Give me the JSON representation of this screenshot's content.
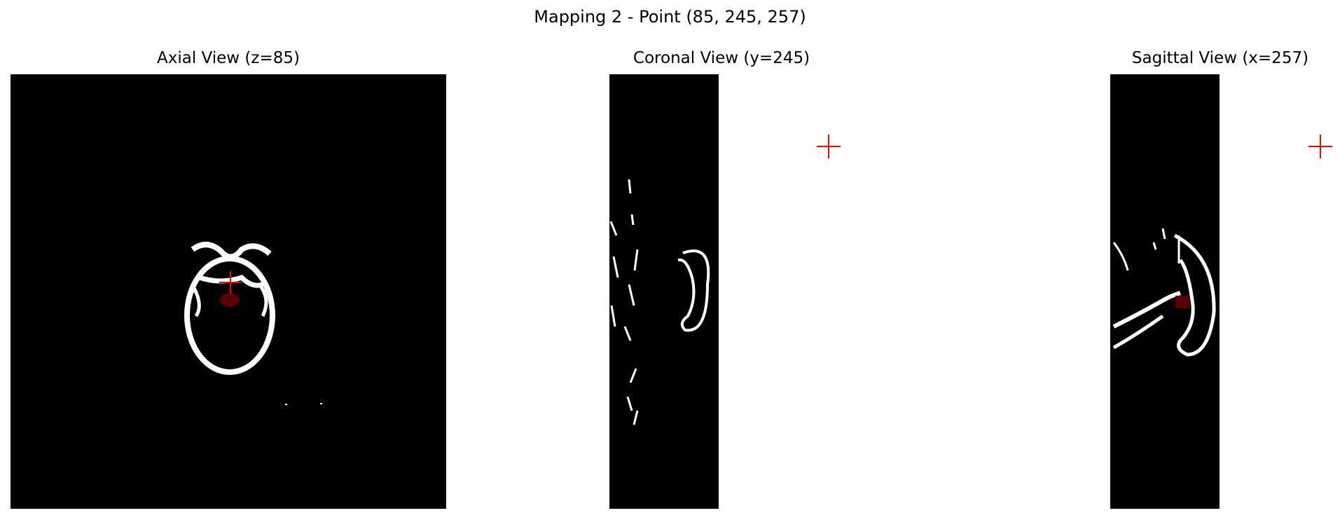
{
  "figure": {
    "title": "Mapping 2 - Point (85, 245, 257)"
  },
  "views": {
    "axial": {
      "title": "Axial View (z=85)"
    },
    "coronal": {
      "title": "Coronal View (y=245)"
    },
    "sagittal": {
      "title": "Sagittal View (x=257)"
    }
  },
  "colors": {
    "background": "#ffffff",
    "image": "#000000",
    "bone": "#ffffff",
    "crosshair": "#ff0000",
    "overlay": "#5a0000"
  }
}
